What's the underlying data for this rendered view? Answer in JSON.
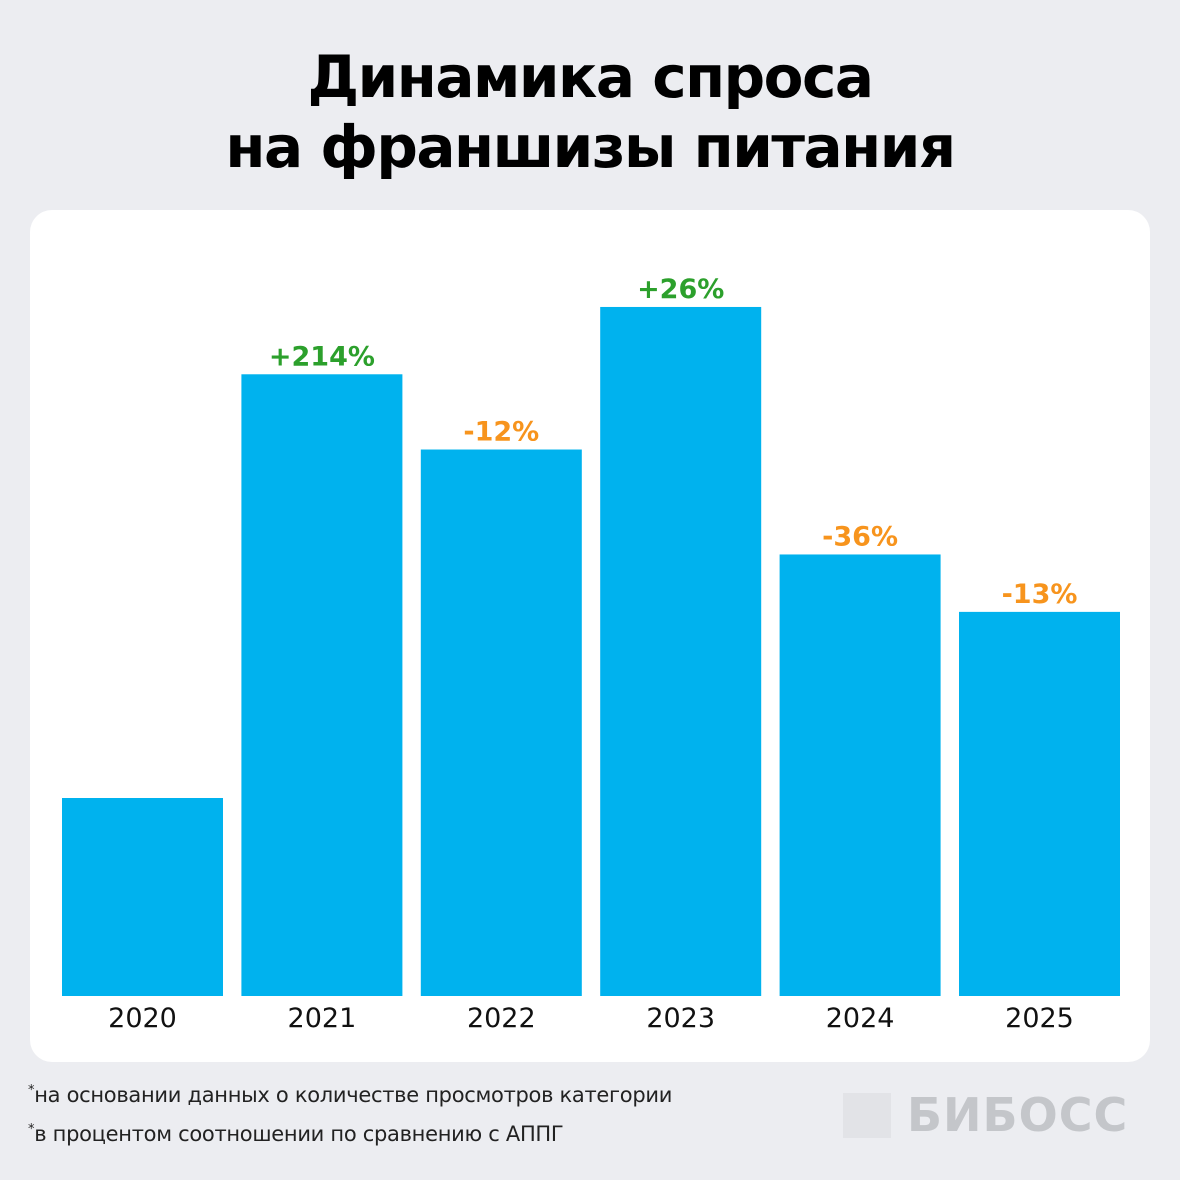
{
  "title_lines": [
    "Динамика спроса",
    "на франшизы питания"
  ],
  "chart_data": {
    "type": "bar",
    "title": "Динамика спроса на франшизы питания",
    "categories": [
      "2020",
      "2021",
      "2022",
      "2023",
      "2024",
      "2025"
    ],
    "values": [
      100,
      314,
      276,
      348,
      223,
      194
    ],
    "data_labels": [
      "",
      "+214%",
      "-12%",
      "+26%",
      "-36%",
      "-13%"
    ],
    "xlabel": "",
    "ylabel": "",
    "ylim": [
      0,
      400
    ],
    "grid": false,
    "bar_color": "#00b2ee",
    "positive_label_color": "#2ca02c",
    "negative_label_color": "#f7941d"
  },
  "footnotes": [
    "на основании данных о количестве просмотров категории",
    "в процентом соотношении по сравнению с АППГ"
  ],
  "footnote_marker": "*",
  "logo": {
    "text": "БИБОСС"
  }
}
